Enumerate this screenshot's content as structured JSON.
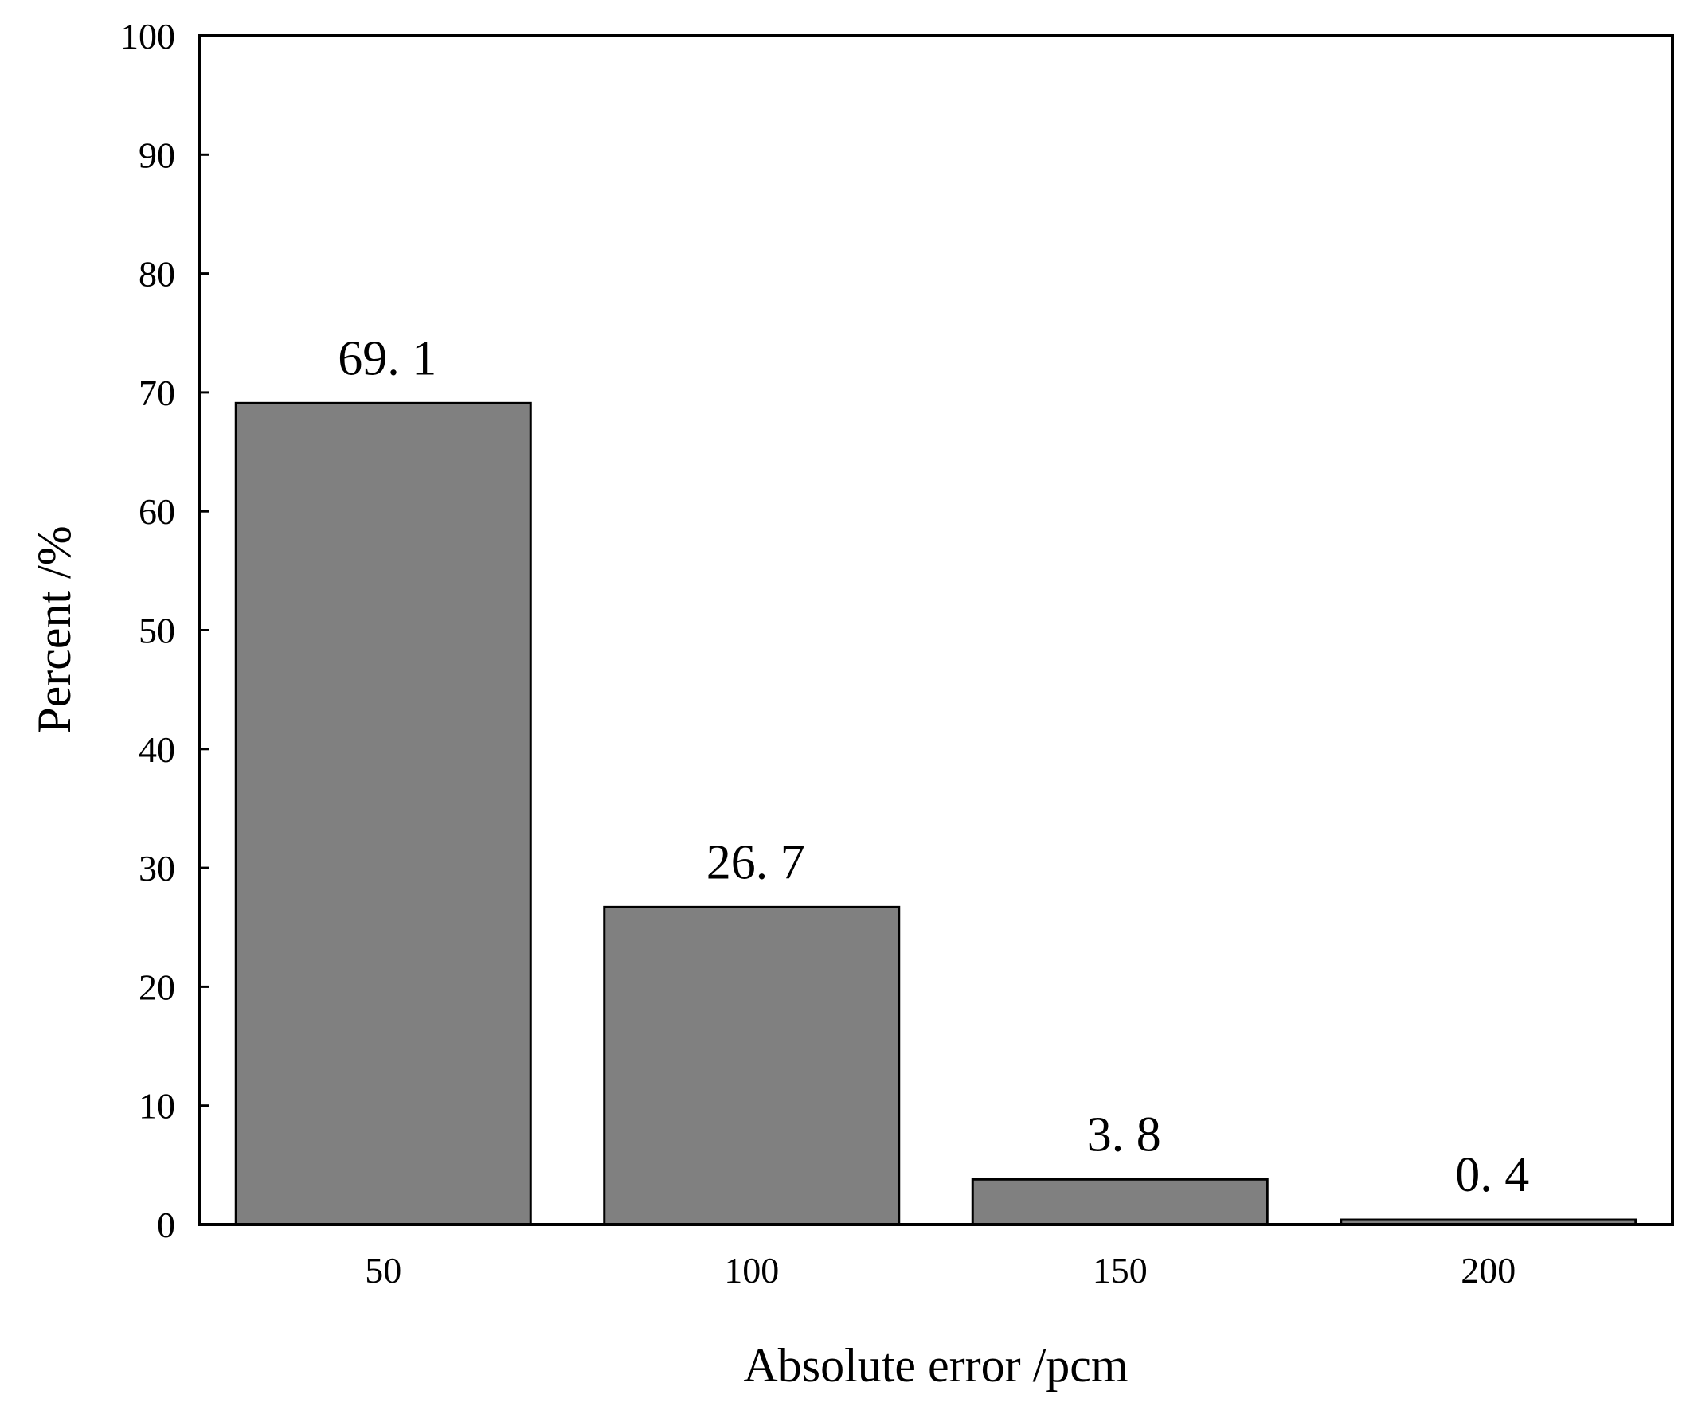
{
  "chart_data": {
    "type": "bar",
    "title": "",
    "xlabel": "Absolute error /pcm",
    "ylabel": "Percent /%",
    "categories": [
      "50",
      "100",
      "150",
      "200"
    ],
    "values": [
      69.1,
      26.7,
      3.8,
      0.4
    ],
    "data_labels": [
      "69. 1",
      "26. 7",
      "3. 8",
      "0. 4"
    ],
    "ylim": [
      0,
      100
    ],
    "y_ticks": [
      "0",
      "10",
      "20",
      "30",
      "40",
      "50",
      "60",
      "70",
      "80",
      "90",
      "100"
    ],
    "grid": false,
    "legend": "none",
    "bar_color": "#808080",
    "bar_edge_color": "#000000"
  }
}
